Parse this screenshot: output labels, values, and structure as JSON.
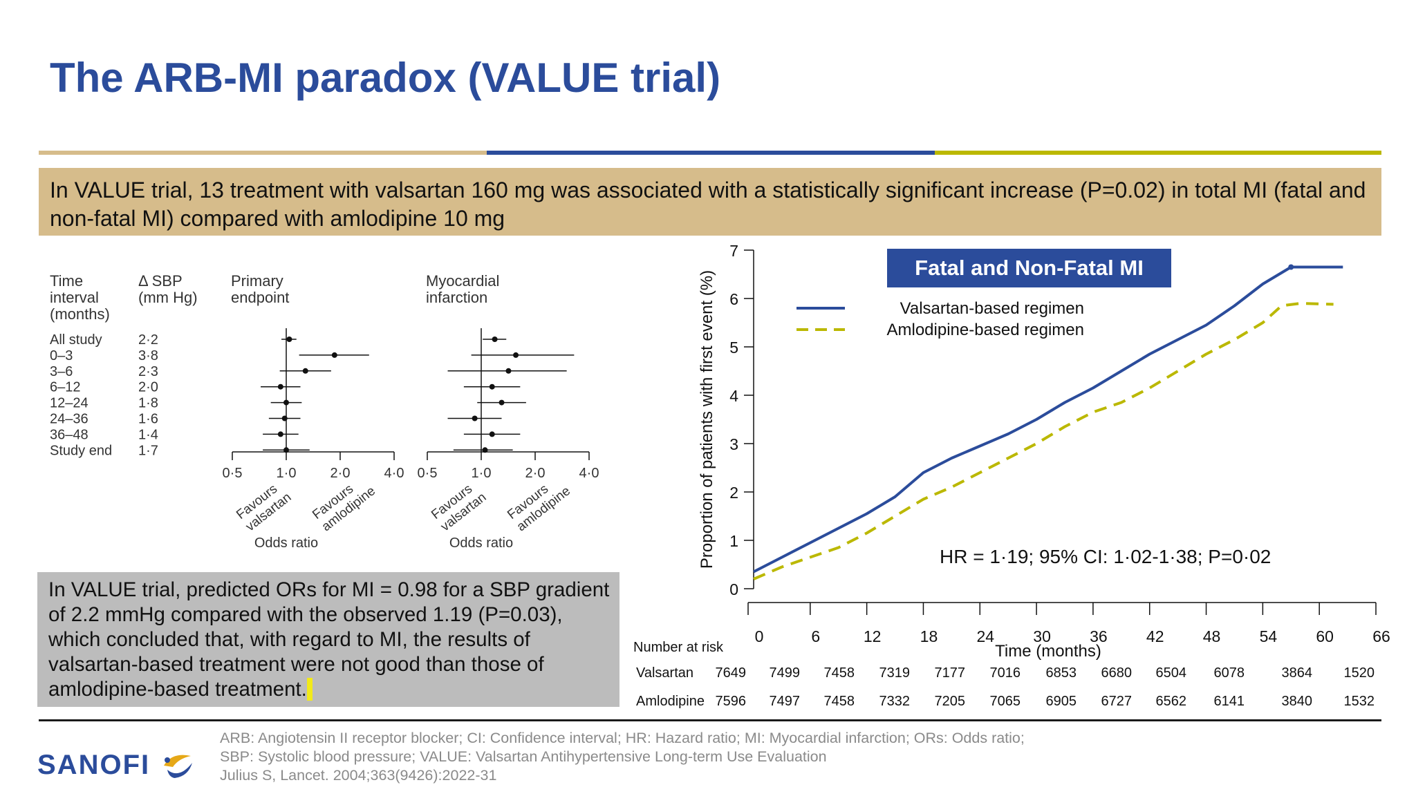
{
  "slide": {
    "title": "The ARB-MI paradox (VALUE trial)",
    "colors": {
      "accent_blue": "#2b4c9b",
      "accent_tan": "#d6bc8b",
      "accent_olive": "#bbb800",
      "gray_box": "#bcbcbc"
    },
    "banner_text": "In VALUE trial, 13 treatment with valsartan 160 mg was associated with a statistically significant increase (P=0.02) in total MI (fatal and non-fatal MI) compared with amlodipine 10 mg",
    "box_text_main": "In VALUE trial, predicted ORs for MI = 0.98 for a SBP gradient of 2.2 mmHg compared with the observed 1.19 (P=0.03), which concluded that, with regard to MI, the results of valsartan-based treatment were not good than those of amlodipine-based treatment.",
    "footnote_lines": [
      "ARB: Angiotensin II receptor blocker; CI: Confidence interval; HR: Hazard ratio; MI: Myocardial infarction; ORs: Odds ratio;",
      "SBP: Systolic blood pressure; VALUE: Valsartan Antihypertensive Long-term Use Evaluation",
      "Julius S, Lancet. 2004;363(9426):2022-31"
    ],
    "logo_text": "SANOFI"
  },
  "chart_data": [
    {
      "type": "forest",
      "scale": "log",
      "xticks": [
        "0·5",
        "1·0",
        "2·0",
        "4·0"
      ],
      "xtick_values": [
        0.5,
        1.0,
        2.0,
        4.0
      ],
      "headers": {
        "time": [
          "Time",
          "interval",
          "(months)"
        ],
        "sbp": [
          "Δ SBP",
          "(mm Hg)"
        ],
        "primary": [
          "Primary",
          "endpoint"
        ],
        "mi": [
          "Myocardial",
          "infarction"
        ]
      },
      "rows": [
        {
          "interval": "All study",
          "dsbp": "2·2",
          "primary": {
            "or": 1.04,
            "lo": 0.94,
            "hi": 1.14
          },
          "mi": {
            "or": 1.19,
            "lo": 1.02,
            "hi": 1.38
          }
        },
        {
          "interval": "0–3",
          "dsbp": "3·8",
          "primary": {
            "or": 1.86,
            "lo": 1.18,
            "hi": 2.9
          },
          "mi": {
            "or": 1.56,
            "lo": 0.88,
            "hi": 3.3
          }
        },
        {
          "interval": "3–6",
          "dsbp": "2·3",
          "primary": {
            "or": 1.28,
            "lo": 0.92,
            "hi": 1.78
          },
          "mi": {
            "or": 1.42,
            "lo": 0.65,
            "hi": 3.0
          }
        },
        {
          "interval": "6–12",
          "dsbp": "2·0",
          "primary": {
            "or": 0.93,
            "lo": 0.72,
            "hi": 1.2
          },
          "mi": {
            "or": 1.15,
            "lo": 0.8,
            "hi": 1.65
          }
        },
        {
          "interval": "12–24",
          "dsbp": "1·8",
          "primary": {
            "or": 1.0,
            "lo": 0.82,
            "hi": 1.22
          },
          "mi": {
            "or": 1.3,
            "lo": 0.95,
            "hi": 1.78
          }
        },
        {
          "interval": "24–36",
          "dsbp": "1·6",
          "primary": {
            "or": 0.98,
            "lo": 0.8,
            "hi": 1.2
          },
          "mi": {
            "or": 0.92,
            "lo": 0.65,
            "hi": 1.3
          }
        },
        {
          "interval": "36–48",
          "dsbp": "1·4",
          "primary": {
            "or": 0.93,
            "lo": 0.74,
            "hi": 1.17
          },
          "mi": {
            "or": 1.15,
            "lo": 0.8,
            "hi": 1.65
          }
        },
        {
          "interval": "Study end",
          "dsbp": "1·7",
          "primary": {
            "or": 1.0,
            "lo": 0.74,
            "hi": 1.35
          },
          "mi": {
            "or": 1.05,
            "lo": 0.7,
            "hi": 1.5
          }
        }
      ],
      "favour_left": [
        "Favours",
        "valsartan"
      ],
      "favour_right": [
        "Favours",
        "amlodipine"
      ],
      "xlabel": "Odds ratio"
    },
    {
      "type": "line",
      "title": "Fatal and Non-Fatal MI",
      "xlabel": "Time (months)",
      "ylabel": "Proportion of patients with first event (%)",
      "xlim": [
        0,
        66
      ],
      "ylim": [
        0,
        7
      ],
      "xticks": [
        0,
        6,
        12,
        18,
        24,
        30,
        36,
        42,
        48,
        54,
        60,
        66
      ],
      "yticks": [
        0,
        1,
        2,
        3,
        4,
        5,
        6,
        7
      ],
      "annotation": "HR = 1·19; 95% CI: 1·02-1·38; P=0·02",
      "series": [
        {
          "name": "Valsartan-based regimen",
          "style": "solid",
          "color": "#2b4c9b",
          "x": [
            0,
            3,
            6,
            9,
            12,
            15,
            18,
            21,
            24,
            27,
            30,
            33,
            36,
            39,
            42,
            45,
            48,
            51,
            54,
            57,
            62.5
          ],
          "y": [
            0.35,
            0.65,
            0.95,
            1.25,
            1.55,
            1.9,
            2.4,
            2.7,
            2.95,
            3.2,
            3.5,
            3.85,
            4.15,
            4.5,
            4.85,
            5.15,
            5.45,
            5.85,
            6.3,
            6.65,
            6.65
          ]
        },
        {
          "name": "Amlodipine-based regimen",
          "style": "dashed",
          "color": "#bbb800",
          "x": [
            0,
            3,
            6,
            9,
            12,
            15,
            18,
            21,
            24,
            27,
            30,
            33,
            36,
            39,
            42,
            45,
            48,
            51,
            54,
            56,
            58,
            61.5
          ],
          "y": [
            0.2,
            0.45,
            0.65,
            0.85,
            1.15,
            1.5,
            1.85,
            2.1,
            2.4,
            2.7,
            3.0,
            3.35,
            3.65,
            3.85,
            4.15,
            4.5,
            4.85,
            5.15,
            5.5,
            5.85,
            5.9,
            5.88
          ]
        }
      ],
      "number_at_risk": {
        "label": "Number at risk",
        "rows": [
          {
            "name": "Valsartan",
            "values": [
              7649,
              7499,
              7458,
              7319,
              7177,
              7016,
              6853,
              6680,
              6504,
              6078,
              3864,
              1520
            ]
          },
          {
            "name": "Amlodipine",
            "values": [
              7596,
              7497,
              7458,
              7332,
              7205,
              7065,
              6905,
              6727,
              6562,
              6141,
              3840,
              1532
            ]
          }
        ]
      }
    }
  ]
}
